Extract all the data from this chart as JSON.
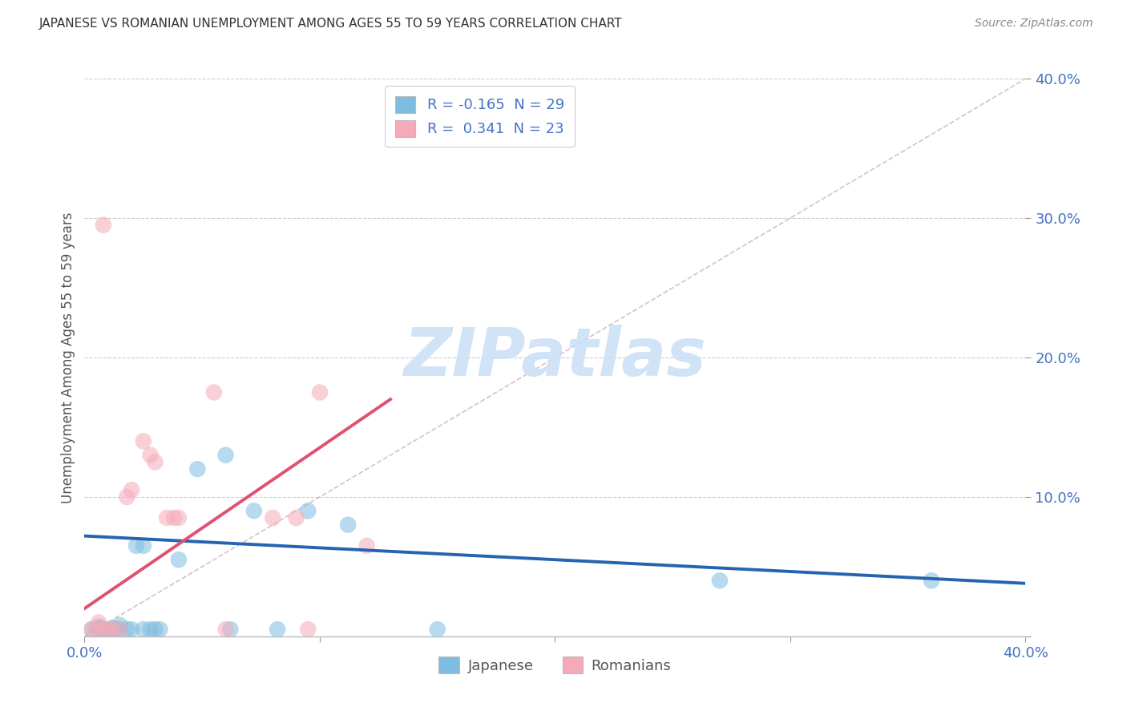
{
  "title": "JAPANESE VS ROMANIAN UNEMPLOYMENT AMONG AGES 55 TO 59 YEARS CORRELATION CHART",
  "source": "Source: ZipAtlas.com",
  "ylabel": "Unemployment Among Ages 55 to 59 years",
  "xlim": [
    0.0,
    0.4
  ],
  "ylim": [
    0.0,
    0.4
  ],
  "watermark": "ZIPatlas",
  "japanese_color": "#7fbde0",
  "romanian_color": "#f5aab8",
  "japanese_scatter": [
    [
      0.003,
      0.005
    ],
    [
      0.005,
      0.005
    ],
    [
      0.006,
      0.007
    ],
    [
      0.007,
      0.006
    ],
    [
      0.008,
      0.003
    ],
    [
      0.01,
      0.005
    ],
    [
      0.012,
      0.006
    ],
    [
      0.013,
      0.005
    ],
    [
      0.015,
      0.005
    ],
    [
      0.015,
      0.008
    ],
    [
      0.018,
      0.005
    ],
    [
      0.02,
      0.005
    ],
    [
      0.022,
      0.065
    ],
    [
      0.025,
      0.065
    ],
    [
      0.025,
      0.005
    ],
    [
      0.028,
      0.005
    ],
    [
      0.03,
      0.005
    ],
    [
      0.032,
      0.005
    ],
    [
      0.04,
      0.055
    ],
    [
      0.048,
      0.12
    ],
    [
      0.06,
      0.13
    ],
    [
      0.062,
      0.005
    ],
    [
      0.072,
      0.09
    ],
    [
      0.082,
      0.005
    ],
    [
      0.095,
      0.09
    ],
    [
      0.112,
      0.08
    ],
    [
      0.15,
      0.005
    ],
    [
      0.27,
      0.04
    ],
    [
      0.36,
      0.04
    ]
  ],
  "romanian_scatter": [
    [
      0.003,
      0.005
    ],
    [
      0.005,
      0.005
    ],
    [
      0.006,
      0.01
    ],
    [
      0.008,
      0.005
    ],
    [
      0.01,
      0.005
    ],
    [
      0.012,
      0.005
    ],
    [
      0.015,
      0.005
    ],
    [
      0.018,
      0.1
    ],
    [
      0.02,
      0.105
    ],
    [
      0.025,
      0.14
    ],
    [
      0.028,
      0.13
    ],
    [
      0.03,
      0.125
    ],
    [
      0.035,
      0.085
    ],
    [
      0.038,
      0.085
    ],
    [
      0.04,
      0.085
    ],
    [
      0.055,
      0.175
    ],
    [
      0.06,
      0.005
    ],
    [
      0.08,
      0.085
    ],
    [
      0.09,
      0.085
    ],
    [
      0.095,
      0.005
    ],
    [
      0.1,
      0.175
    ],
    [
      0.12,
      0.065
    ],
    [
      0.008,
      0.295
    ]
  ],
  "japanese_trendline": {
    "x": [
      0.0,
      0.4
    ],
    "y": [
      0.072,
      0.038
    ]
  },
  "romanian_trendline": {
    "x": [
      0.0,
      0.13
    ],
    "y": [
      0.02,
      0.17
    ]
  },
  "diagonal_line": {
    "x": [
      0.0,
      0.4
    ],
    "y": [
      0.0,
      0.4
    ]
  },
  "legend_r1": "R = -0.165  N = 29",
  "legend_r2": "R =  0.341  N = 23",
  "legend_jp_label": "Japanese",
  "legend_ro_label": "Romanians",
  "title_color": "#333333",
  "source_color": "#888888",
  "axis_label_color": "#555555",
  "tick_color": "#4472c4",
  "grid_color": "#cccccc",
  "watermark_color": "#cce0f5",
  "legend_text_color": "#4472c4",
  "trendline_jp_color": "#2464b0",
  "trendline_ro_color": "#e05070",
  "diagonal_color": "#ccaabb"
}
